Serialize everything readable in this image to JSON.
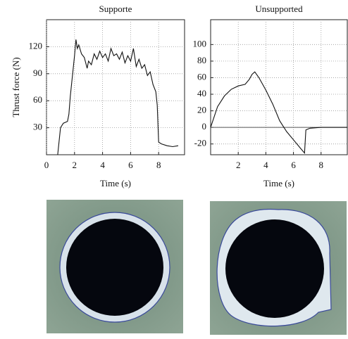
{
  "chart_data": [
    {
      "type": "line",
      "title": "Supporte",
      "y_label": "Thrust force (N)",
      "x_label": "Time (s)",
      "xlim": [
        0,
        9.85
      ],
      "ylim": [
        0,
        150
      ],
      "xticks": [
        0,
        2,
        4,
        6,
        8
      ],
      "yticks": [
        30,
        60,
        90,
        120
      ],
      "grid": true,
      "zero_line": false,
      "series": [
        {
          "color": "#111111",
          "x": [
            0.8,
            1.0,
            1.2,
            1.5,
            1.6,
            1.7,
            1.8,
            1.9,
            2.0,
            2.1,
            2.2,
            2.3,
            2.5,
            2.7,
            2.9,
            3.0,
            3.2,
            3.4,
            3.6,
            3.8,
            4.0,
            4.2,
            4.4,
            4.6,
            4.8,
            5.0,
            5.2,
            5.4,
            5.6,
            5.8,
            6.0,
            6.2,
            6.4,
            6.6,
            6.8,
            7.0,
            7.2,
            7.4,
            7.6,
            7.8,
            7.9,
            8.0,
            8.2,
            8.6,
            9.0,
            9.4
          ],
          "values": [
            0,
            30,
            35,
            37,
            45,
            65,
            80,
            95,
            110,
            128,
            118,
            122,
            112,
            108,
            96,
            104,
            100,
            112,
            106,
            115,
            108,
            112,
            104,
            118,
            110,
            112,
            106,
            114,
            102,
            110,
            104,
            118,
            98,
            106,
            96,
            100,
            88,
            92,
            78,
            70,
            55,
            14,
            12,
            10,
            9,
            10
          ]
        }
      ]
    },
    {
      "type": "line",
      "title": "Unsupported",
      "x_label": "Time (s)",
      "xlim": [
        0,
        9.9
      ],
      "ylim": [
        -33,
        130
      ],
      "xticks": [
        2,
        4,
        6,
        8
      ],
      "yticks": [
        -20,
        0,
        20,
        40,
        60,
        80,
        100
      ],
      "grid": true,
      "zero_line": true,
      "series": [
        {
          "color": "#111111",
          "x": [
            0,
            0.5,
            1.0,
            1.5,
            2.0,
            2.5,
            2.8,
            3.0,
            3.2,
            3.5,
            4.0,
            4.5,
            5.0,
            5.5,
            6.0,
            6.5,
            6.8,
            6.9,
            7.2,
            8.0,
            9.0,
            9.9
          ],
          "values": [
            0,
            25,
            38,
            46,
            50,
            52,
            58,
            64,
            67,
            60,
            45,
            28,
            8,
            -5,
            -15,
            -25,
            -31,
            -3,
            -1,
            0,
            0,
            0
          ]
        }
      ]
    }
  ]
}
